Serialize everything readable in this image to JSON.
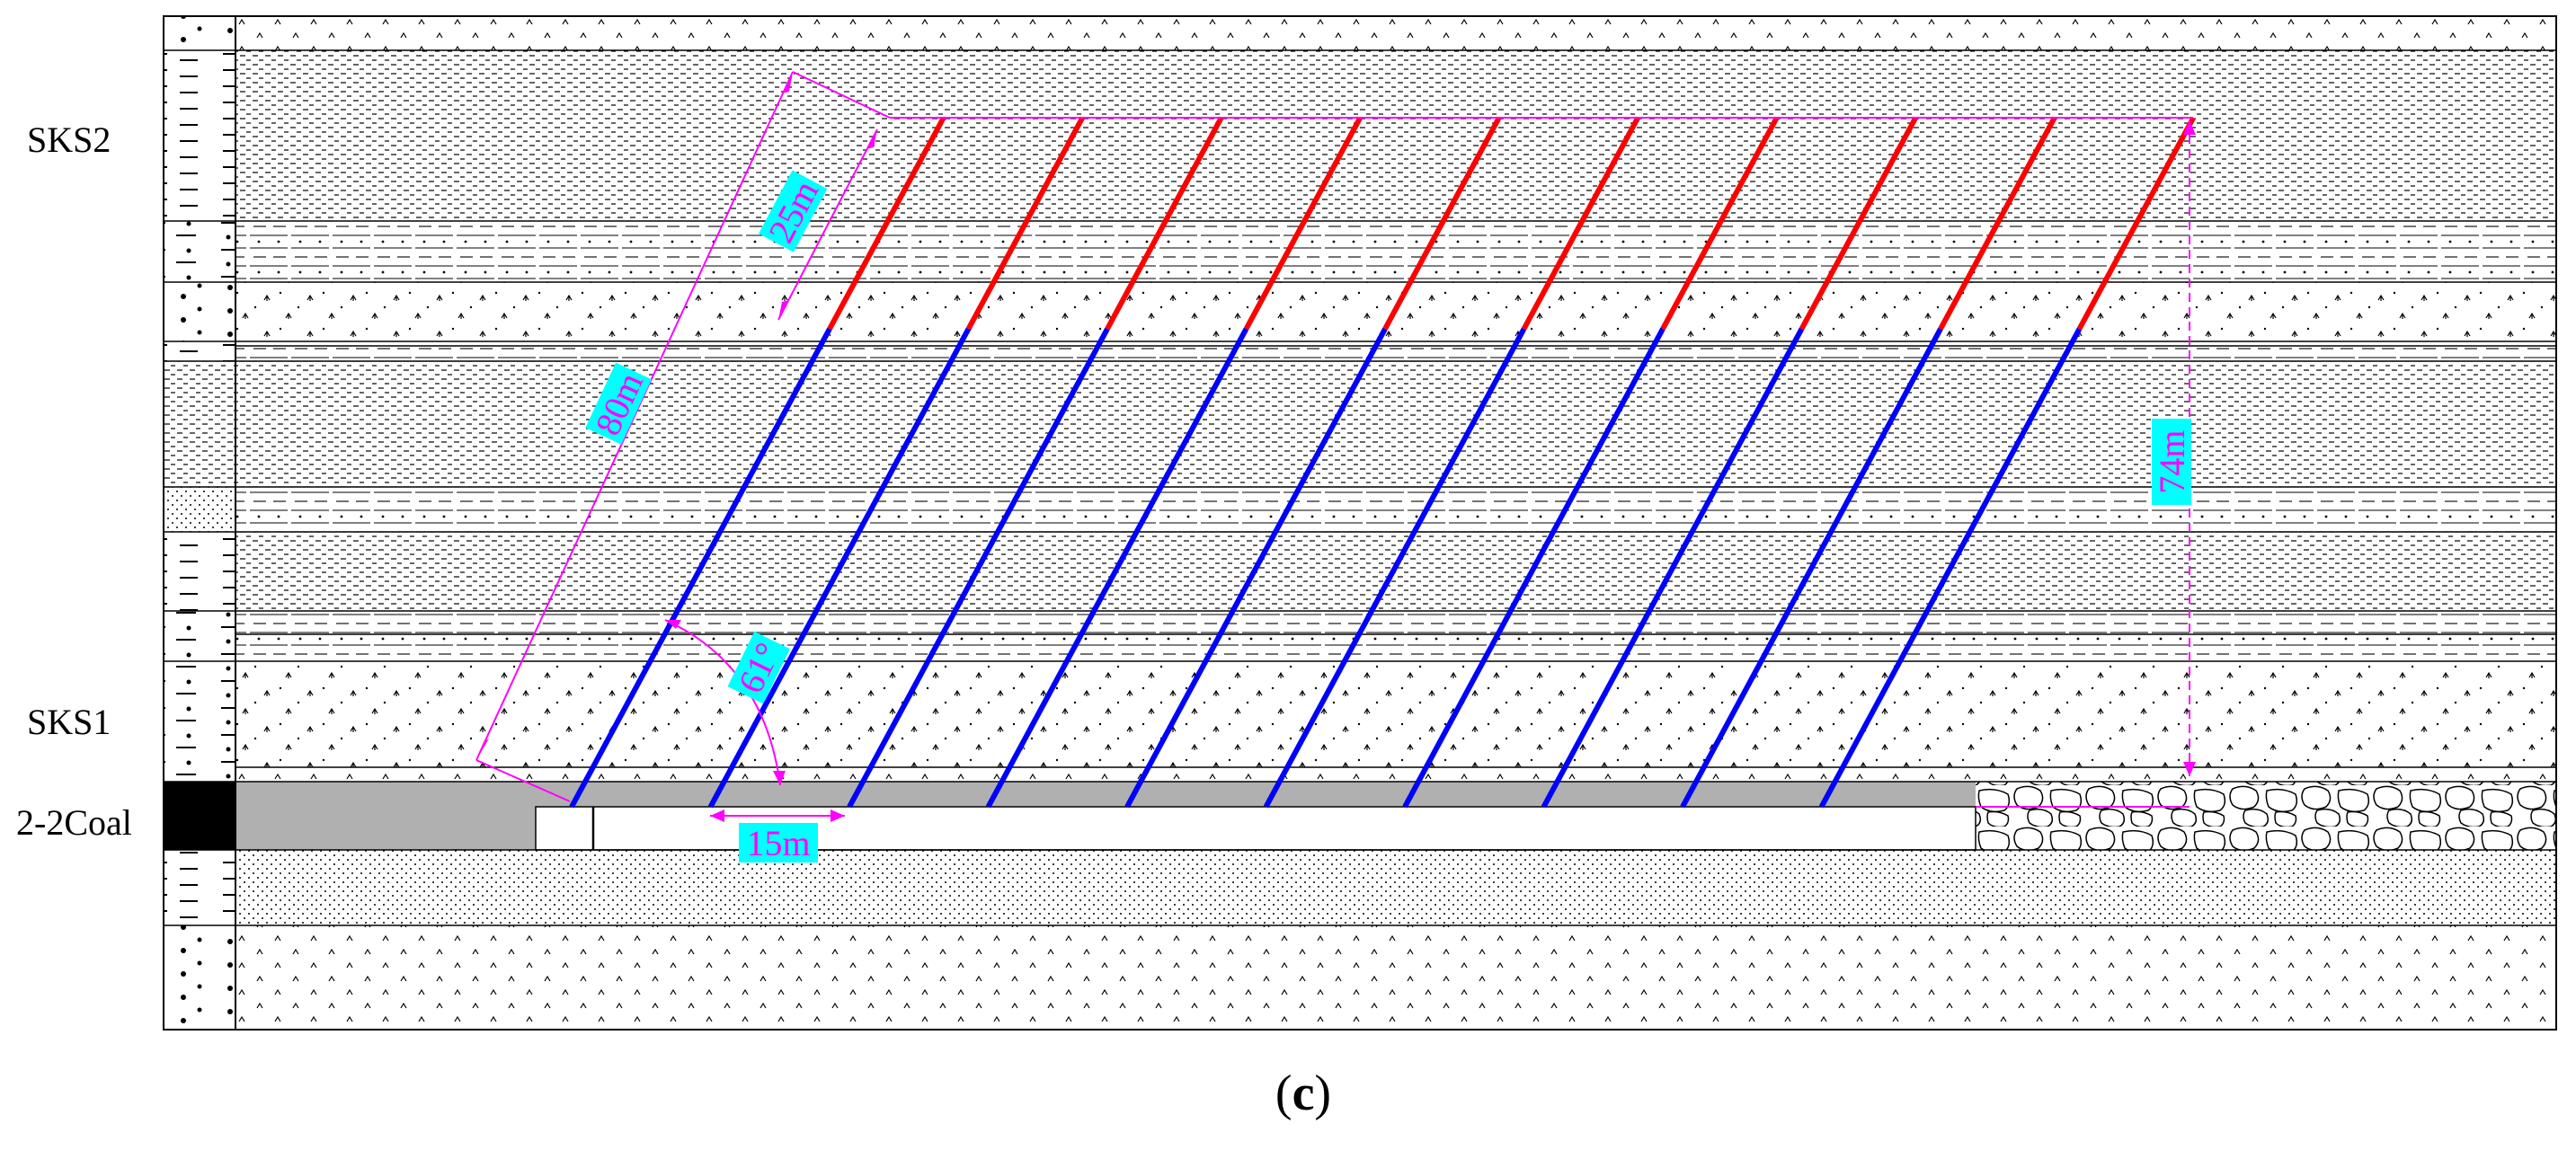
{
  "strata_labels": {
    "upper": "SKS2",
    "lower": "SKS1",
    "coal": "2-2Coal"
  },
  "dimensions": {
    "hole_length": "80m",
    "red_section": "25m",
    "vertical_height": "74m",
    "hole_spacing": "15m",
    "dip_angle": "61°"
  },
  "caption": {
    "open": "(",
    "letter": "c",
    "close": ")"
  },
  "colors": {
    "red_section": "#ff0000",
    "blue_section": "#0000ff",
    "dimension_line": "#ff00ff",
    "label_bg": "#00ffff",
    "label_text": "#ff00ff",
    "coal_fill": "#b0b0b0",
    "coal_column": "#000000"
  }
}
